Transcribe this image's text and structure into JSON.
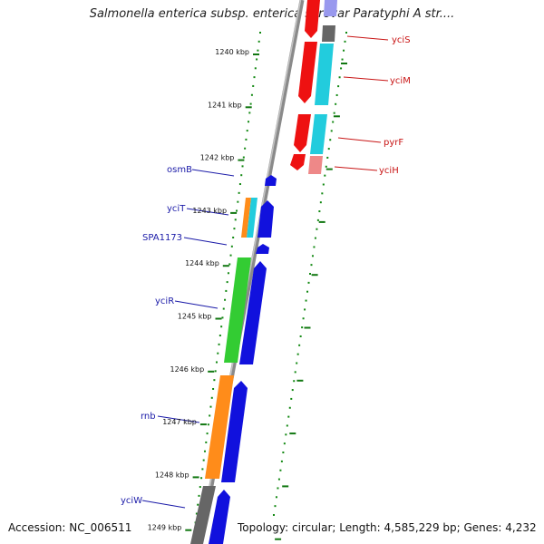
{
  "title": "Salmonella enterica subsp. enterica serovar Paratyphi A str....",
  "footer": {
    "accession": "Accession: NC_006511",
    "summary": "Topology: circular; Length: 4,585,229 bp; Genes: 4,232"
  },
  "ticks": [
    "1240 kbp",
    "1241 kbp",
    "1242 kbp",
    "1243 kbp",
    "1244 kbp",
    "1245 kbp",
    "1246 kbp",
    "1247 kbp",
    "1248 kbp",
    "1249 kbp"
  ],
  "reverse_genes": [
    {
      "name": "yciS",
      "color": "#ee1111"
    },
    {
      "name": "yciM",
      "color": "#ee1111"
    },
    {
      "name": "pyrF",
      "color": "#ee1111"
    },
    {
      "name": "yciH",
      "color": "#ee1111"
    }
  ],
  "forward_genes": [
    {
      "name": "osmB",
      "color": "#1111dd"
    },
    {
      "name": "yciT",
      "color": "#1111dd"
    },
    {
      "name": "SPA1173",
      "color": "#1111dd"
    },
    {
      "name": "yciR",
      "color": "#1111dd"
    },
    {
      "name": "rnb",
      "color": "#1111dd"
    },
    {
      "name": "yciW",
      "color": "#1111dd"
    }
  ],
  "colors": {
    "backbone": "#8a8a8a",
    "forward_cds": "#1111dd",
    "reverse_cds": "#ee1111",
    "cog_cyan": "#22ccdd",
    "cog_orange": "#ff8c1a",
    "cog_green": "#33cc33",
    "cog_gray": "#666666",
    "cog_pink": "#ee8888",
    "cog_lavender": "#9999ee",
    "dots": "#118811"
  }
}
